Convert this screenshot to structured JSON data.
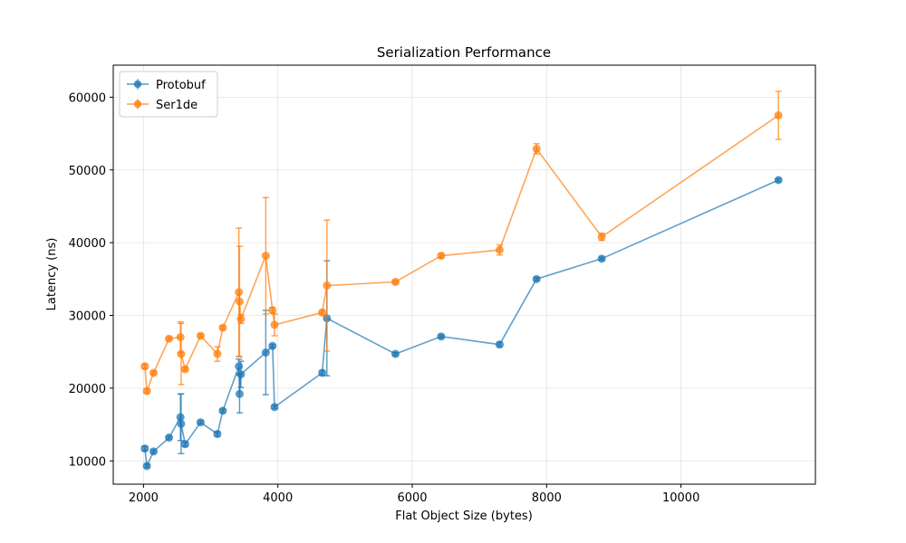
{
  "chart_data": {
    "type": "scatter",
    "title": "Serialization Performance",
    "xlabel": "Flat Object Size (bytes)",
    "ylabel": "Latency (ns)",
    "xlim": [
      1550,
      12000
    ],
    "ylim": [
      6800,
      64400
    ],
    "xticks": [
      2000,
      4000,
      6000,
      8000,
      10000
    ],
    "yticks": [
      10000,
      20000,
      30000,
      40000,
      50000,
      60000
    ],
    "grid": true,
    "legend_position": "top-left",
    "series": [
      {
        "name": "Protobuf",
        "color": "#1f77b4",
        "points": [
          {
            "x": 2020,
            "y": 11700,
            "err": 300
          },
          {
            "x": 2050,
            "y": 9300,
            "err": 200
          },
          {
            "x": 2150,
            "y": 11300,
            "err": 200
          },
          {
            "x": 2380,
            "y": 13200,
            "err": 200
          },
          {
            "x": 2550,
            "y": 16000,
            "err": 3200
          },
          {
            "x": 2560,
            "y": 15100,
            "err": 4100
          },
          {
            "x": 2620,
            "y": 12300,
            "err": 300
          },
          {
            "x": 2850,
            "y": 15300,
            "err": 200
          },
          {
            "x": 3100,
            "y": 13700,
            "err": 300
          },
          {
            "x": 3180,
            "y": 16900,
            "err": 200
          },
          {
            "x": 3420,
            "y": 23000,
            "err": 1000
          },
          {
            "x": 3430,
            "y": 19200,
            "err": 2600
          },
          {
            "x": 3450,
            "y": 21900,
            "err": 1800
          },
          {
            "x": 3820,
            "y": 24900,
            "err": 5800
          },
          {
            "x": 3920,
            "y": 25800,
            "err": 200
          },
          {
            "x": 3950,
            "y": 17400,
            "err": 200
          },
          {
            "x": 4660,
            "y": 22100,
            "err": 300
          },
          {
            "x": 4730,
            "y": 29600,
            "err": 7900
          },
          {
            "x": 5750,
            "y": 24700,
            "err": 200
          },
          {
            "x": 6430,
            "y": 27100,
            "err": 200
          },
          {
            "x": 7300,
            "y": 26000,
            "err": 300
          },
          {
            "x": 7850,
            "y": 35000,
            "err": 200
          },
          {
            "x": 8820,
            "y": 37800,
            "err": 200
          },
          {
            "x": 11450,
            "y": 48600,
            "err": 200
          }
        ]
      },
      {
        "name": "Ser1de",
        "color": "#ff7f0e",
        "points": [
          {
            "x": 2020,
            "y": 23000,
            "err": 300
          },
          {
            "x": 2050,
            "y": 19600,
            "err": 300
          },
          {
            "x": 2150,
            "y": 22100,
            "err": 200
          },
          {
            "x": 2380,
            "y": 26800,
            "err": 200
          },
          {
            "x": 2550,
            "y": 27000,
            "err": 2100
          },
          {
            "x": 2560,
            "y": 24700,
            "err": 4200
          },
          {
            "x": 2620,
            "y": 22600,
            "err": 200
          },
          {
            "x": 2850,
            "y": 27200,
            "err": 200
          },
          {
            "x": 3100,
            "y": 24700,
            "err": 1000
          },
          {
            "x": 3180,
            "y": 28300,
            "err": 200
          },
          {
            "x": 3420,
            "y": 33200,
            "err": 8800
          },
          {
            "x": 3430,
            "y": 31900,
            "err": 7600
          },
          {
            "x": 3450,
            "y": 29500,
            "err": 600
          },
          {
            "x": 3820,
            "y": 38200,
            "err": 8000
          },
          {
            "x": 3920,
            "y": 30700,
            "err": 400
          },
          {
            "x": 3950,
            "y": 28700,
            "err": 1500
          },
          {
            "x": 4660,
            "y": 30400,
            "err": 300
          },
          {
            "x": 4730,
            "y": 34100,
            "err": 9000
          },
          {
            "x": 5750,
            "y": 34600,
            "err": 200
          },
          {
            "x": 6430,
            "y": 38200,
            "err": 300
          },
          {
            "x": 7300,
            "y": 39000,
            "err": 700
          },
          {
            "x": 7850,
            "y": 52900,
            "err": 700
          },
          {
            "x": 8820,
            "y": 40800,
            "err": 500
          },
          {
            "x": 11450,
            "y": 57500,
            "err": 3300
          }
        ]
      }
    ]
  }
}
